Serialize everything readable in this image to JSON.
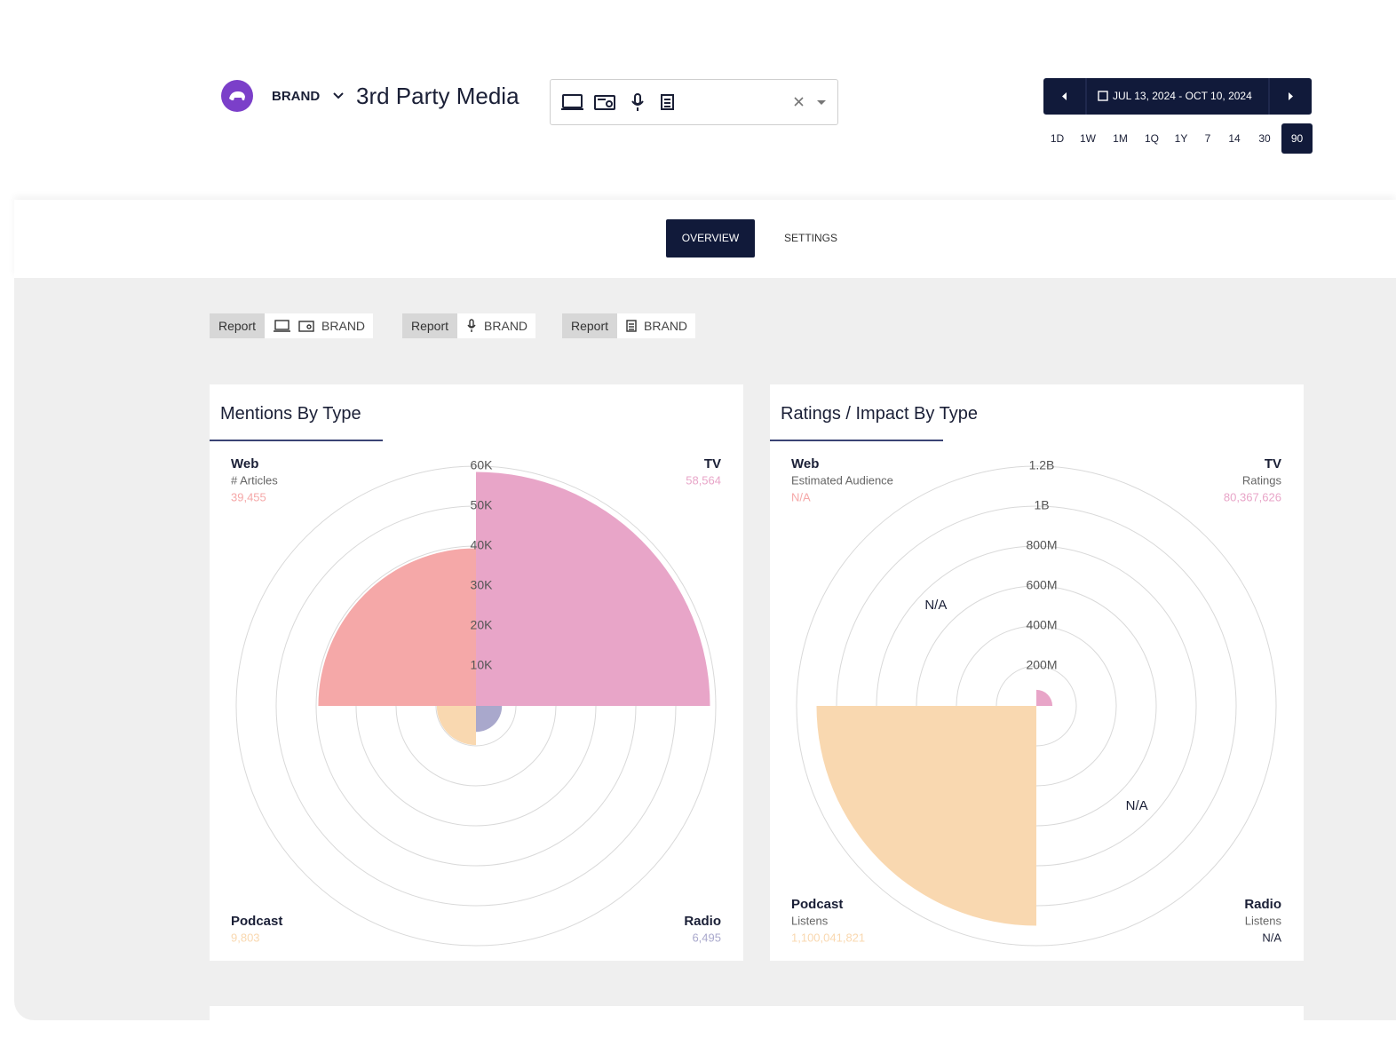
{
  "header": {
    "brand": "BRAND",
    "title": "3rd Party Media",
    "date_range": "JUL 13, 2024 - OCT 10, 2024",
    "ranges": [
      "1D",
      "1W",
      "1M",
      "1Q",
      "1Y",
      "7",
      "14",
      "30",
      "90"
    ],
    "active_range": "90"
  },
  "tabs": [
    "OVERVIEW",
    "SETTINGS"
  ],
  "active_tab": "OVERVIEW",
  "reports": [
    {
      "label": "Report",
      "brand": "BRAND"
    },
    {
      "label": "Report",
      "brand": "BRAND"
    },
    {
      "label": "Report",
      "brand": "BRAND"
    }
  ],
  "chart_data": [
    {
      "type": "polar",
      "title": "Mentions By Type",
      "categories": [
        "TV",
        "Radio",
        "Podcast",
        "Web"
      ],
      "metrics": [
        null,
        null,
        null,
        "# Articles"
      ],
      "values": [
        58564,
        6495,
        9803,
        39455
      ],
      "value_labels": [
        "58,564",
        "6,495",
        "9,803",
        "39,455"
      ],
      "colors": [
        "#e8a5c8",
        "#a9a8cc",
        "#f9d8b0",
        "#f5a8a8"
      ],
      "rlim": [
        0,
        60000
      ],
      "rticks": [
        {
          "value": 10000,
          "label": "10K"
        },
        {
          "value": 20000,
          "label": "20K"
        },
        {
          "value": 30000,
          "label": "30K"
        },
        {
          "value": 40000,
          "label": "40K"
        },
        {
          "value": 50000,
          "label": "50K"
        },
        {
          "value": 60000,
          "label": "60K"
        }
      ],
      "grid": true
    },
    {
      "type": "polar",
      "title": "Ratings / Impact By Type",
      "categories": [
        "TV",
        "Radio",
        "Podcast",
        "Web"
      ],
      "metrics": [
        "Ratings",
        "Listens",
        "Listens",
        "Estimated Audience"
      ],
      "values": [
        80367626,
        null,
        1100041821,
        null
      ],
      "value_labels": [
        "80,367,626",
        "N/A",
        "1,100,041,821",
        "N/A"
      ],
      "colors": [
        "#e8a5c8",
        "#1a1f36",
        "#f9d8b0",
        "#f5a8a8"
      ],
      "rlim": [
        0,
        1200000000
      ],
      "rticks": [
        {
          "value": 200000000,
          "label": "200M"
        },
        {
          "value": 400000000,
          "label": "400M"
        },
        {
          "value": 600000000,
          "label": "600M"
        },
        {
          "value": 800000000,
          "label": "800M"
        },
        {
          "value": 1000000000,
          "label": "1B"
        },
        {
          "value": 1200000000,
          "label": "1.2B"
        }
      ],
      "grid": true
    }
  ]
}
